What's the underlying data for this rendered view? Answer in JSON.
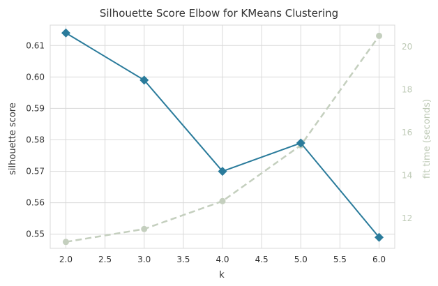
{
  "chart_data": {
    "type": "line",
    "title": "Silhouette Score Elbow for KMeans Clustering",
    "xlabel": "k",
    "ylabel": "silhouette score",
    "y2label": "fit time (seconds)",
    "x": [
      2.0,
      3.0,
      4.0,
      5.0,
      6.0
    ],
    "xlim": [
      1.8,
      6.2
    ],
    "ylim": [
      0.5455,
      0.6165
    ],
    "y2lim": [
      10.6,
      21.0
    ],
    "xticks": [
      "2.0",
      "2.5",
      "3.0",
      "3.5",
      "4.0",
      "4.5",
      "5.0",
      "5.5",
      "6.0"
    ],
    "yticks": [
      "0.55",
      "0.56",
      "0.57",
      "0.58",
      "0.59",
      "0.60",
      "0.61"
    ],
    "y2ticks": [
      "12",
      "14",
      "16",
      "18",
      "20"
    ],
    "grid": true,
    "series": [
      {
        "axis": "left",
        "values": [
          0.614,
          0.599,
          0.57,
          0.579,
          0.549
        ],
        "color": "#2a7b9b",
        "style": "solid",
        "marker": "diamond"
      },
      {
        "axis": "right",
        "values": [
          10.9,
          11.5,
          12.8,
          15.4,
          20.5
        ],
        "color": "#c4cfbe",
        "style": "dashed",
        "marker": "circle"
      }
    ]
  }
}
